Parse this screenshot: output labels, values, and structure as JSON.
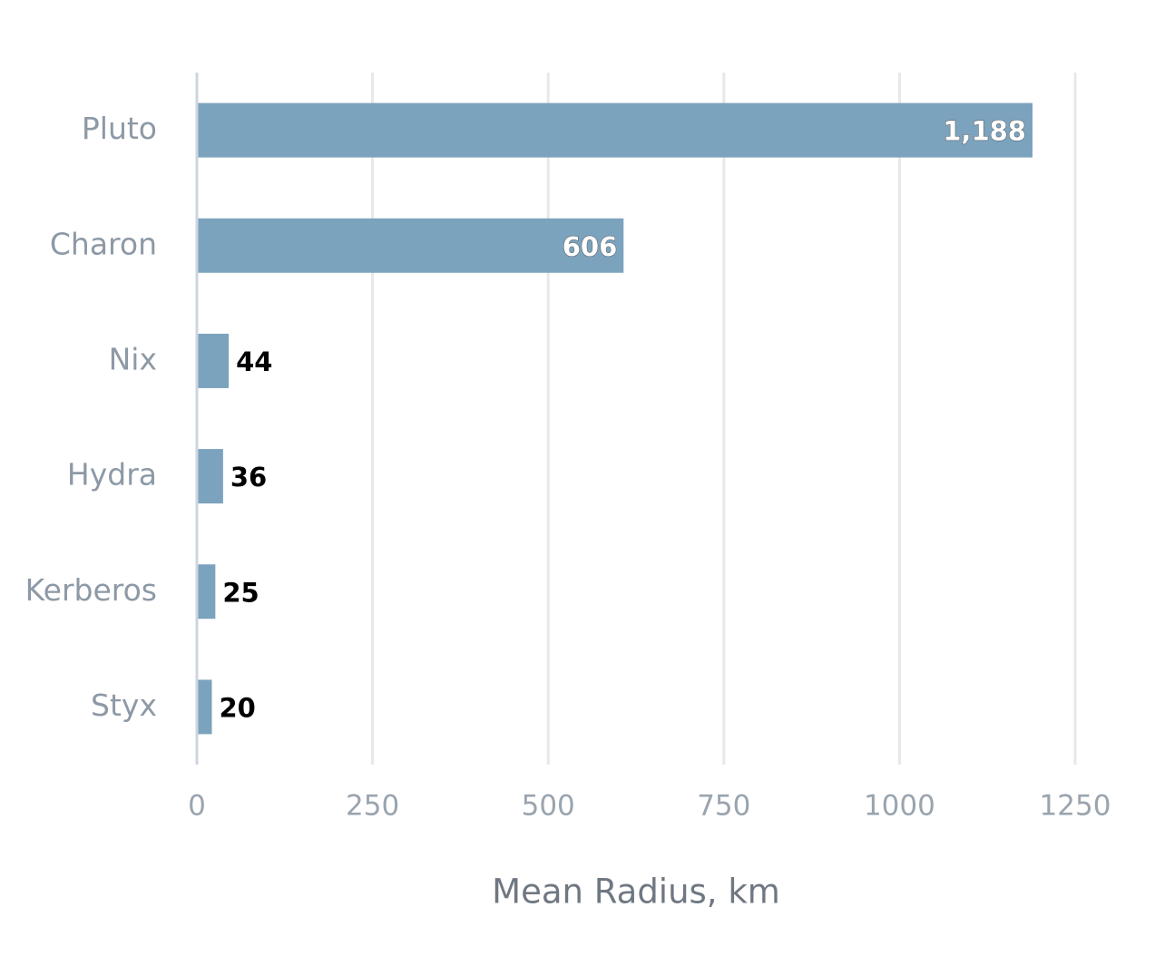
{
  "chart_data": {
    "type": "bar",
    "orientation": "horizontal",
    "x_label": "Mean Radius, km",
    "categories": [
      "Pluto",
      "Charon",
      "Nix",
      "Hydra",
      "Kerberos",
      "Styx"
    ],
    "values": [
      1188,
      606,
      44,
      36,
      25,
      20
    ],
    "value_labels": [
      "1,188",
      "606",
      "44",
      "36",
      "25",
      "20"
    ],
    "color": "#7ba3bd",
    "xlim": [
      0,
      1250
    ],
    "xticks": [
      0,
      250,
      500,
      750,
      1000,
      1250
    ],
    "grid": true
  }
}
